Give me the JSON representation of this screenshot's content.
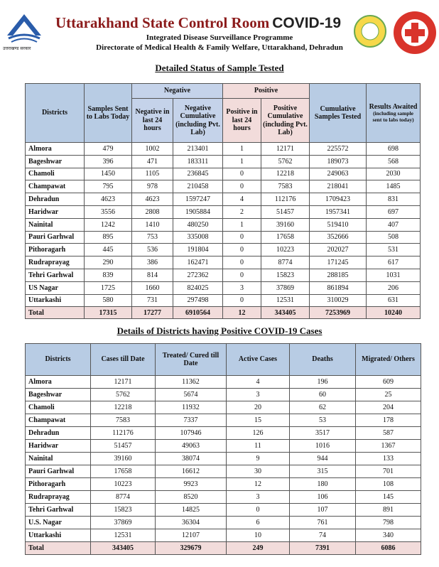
{
  "header": {
    "title": "Uttarakhand State Control Room",
    "covid": "COVID-19",
    "subtitle1": "Integrated Disease Surveillance Programme",
    "subtitle2": "Directorate of Medical Health & Family Welfare, Uttarakhand, Dehradun",
    "logo_caption": "उत्तराखण्ड सरकार"
  },
  "table1": {
    "title": "Detailed Status of Sample Tested",
    "headers": {
      "districts": "Districts",
      "samples": "Samples Sent to Labs Today",
      "negative": "Negative",
      "neg24": "Negative in last 24 hours",
      "negcum": "Negative Cumulative (including Pvt. Lab)",
      "positive": "Positive",
      "pos24": "Positive in last 24 hours",
      "poscum": "Positive Cumulative (including Pvt. Lab)",
      "cumtested": "Cumulative Samples Tested",
      "awaited": "Results Awaited",
      "awaited_note": "(including sample sent to labs today)"
    },
    "rows": [
      [
        "Almora",
        479,
        1002,
        213401,
        1,
        12171,
        225572,
        698
      ],
      [
        "Bageshwar",
        396,
        471,
        183311,
        1,
        5762,
        189073,
        568
      ],
      [
        "Chamoli",
        1450,
        1105,
        236845,
        0,
        12218,
        249063,
        2030
      ],
      [
        "Champawat",
        795,
        978,
        210458,
        0,
        7583,
        218041,
        1485
      ],
      [
        "Dehradun",
        4623,
        4623,
        1597247,
        4,
        112176,
        1709423,
        831
      ],
      [
        "Haridwar",
        3556,
        2808,
        1905884,
        2,
        51457,
        1957341,
        697
      ],
      [
        "Nainital",
        1242,
        1410,
        480250,
        1,
        39160,
        519410,
        407
      ],
      [
        "Pauri Garhwal",
        895,
        753,
        335008,
        0,
        17658,
        352666,
        508
      ],
      [
        "Pithoragarh",
        445,
        536,
        191804,
        0,
        10223,
        202027,
        531
      ],
      [
        "Rudraprayag",
        290,
        386,
        162471,
        0,
        8774,
        171245,
        617
      ],
      [
        "Tehri Garhwal",
        839,
        814,
        272362,
        0,
        15823,
        288185,
        1031
      ],
      [
        "US Nagar",
        1725,
        1660,
        824025,
        3,
        37869,
        861894,
        206
      ],
      [
        "Uttarkashi",
        580,
        731,
        297498,
        0,
        12531,
        310029,
        631
      ]
    ],
    "total": [
      "Total",
      17315,
      17277,
      6910564,
      12,
      343405,
      7253969,
      10240
    ]
  },
  "table2": {
    "title": "Details of Districts having Positive COVID-19 Cases",
    "headers": [
      "Districts",
      "Cases till Date",
      "Treated/ Cured till Date",
      "Active Cases",
      "Deaths",
      "Migrated/ Others"
    ],
    "rows": [
      [
        "Almora",
        12171,
        11362,
        4,
        196,
        609
      ],
      [
        "Bageshwar",
        5762,
        5674,
        3,
        60,
        25
      ],
      [
        "Chamoli",
        12218,
        11932,
        20,
        62,
        204
      ],
      [
        "Champawat",
        7583,
        7337,
        15,
        53,
        178
      ],
      [
        "Dehradun",
        112176,
        107946,
        126,
        3517,
        587
      ],
      [
        "Haridwar",
        51457,
        49063,
        11,
        1016,
        1367
      ],
      [
        "Nainital",
        39160,
        38074,
        9,
        944,
        133
      ],
      [
        "Pauri Garhwal",
        17658,
        16612,
        30,
        315,
        701
      ],
      [
        "Pithoragarh",
        10223,
        9923,
        12,
        180,
        108
      ],
      [
        "Rudraprayag",
        8774,
        8520,
        3,
        106,
        145
      ],
      [
        "Tehri Garhwal",
        15823,
        14825,
        0,
        107,
        891
      ],
      [
        "U.S. Nagar",
        37869,
        36304,
        6,
        761,
        798
      ],
      [
        "Uttarkashi",
        12531,
        12107,
        10,
        74,
        340
      ]
    ],
    "total": [
      "Total",
      343405,
      329679,
      249,
      7391,
      6086
    ]
  }
}
